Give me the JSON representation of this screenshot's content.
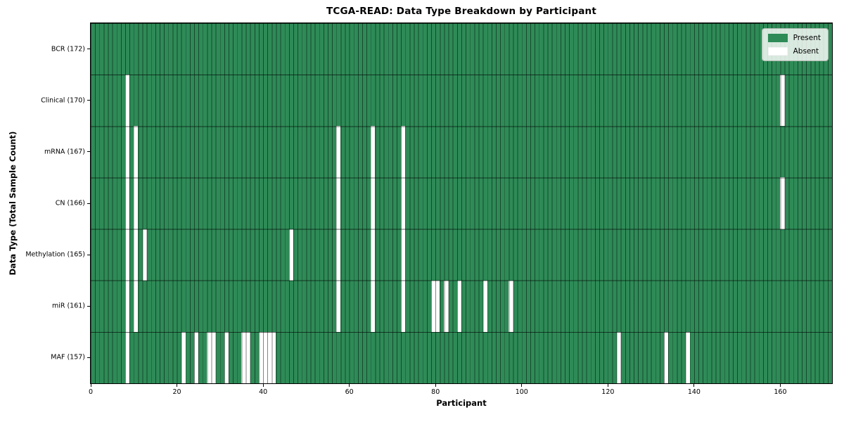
{
  "title": "TCGA-READ: Data Type Breakdown by Participant",
  "legend": {
    "present_label": "Present",
    "absent_label": "Absent",
    "present_color": "#2e8b57",
    "absent_color": "#ffffff",
    "position": "upper right"
  },
  "chart_data": {
    "type": "heatmap",
    "title": "TCGA-READ: Data Type Breakdown by Participant",
    "xlabel": "Participant",
    "ylabel": "Data Type (Total Sample Count)",
    "n_participants": 172,
    "x_ticks": [
      0,
      20,
      40,
      60,
      80,
      100,
      120,
      140,
      160
    ],
    "present_color": "#2e8b57",
    "absent_color": "#ffffff",
    "grid": true,
    "legend_position": "upper right",
    "rows": [
      {
        "data_type": "BCR",
        "label": "BCR (172)",
        "total": 172,
        "absent_participants": []
      },
      {
        "data_type": "Clinical",
        "label": "Clinical (170)",
        "total": 170,
        "absent_participants": [
          8,
          160
        ]
      },
      {
        "data_type": "mRNA",
        "label": "mRNA (167)",
        "total": 167,
        "absent_participants": [
          8,
          10,
          57,
          65,
          72
        ]
      },
      {
        "data_type": "CN",
        "label": "CN (166)",
        "total": 166,
        "absent_participants": [
          8,
          10,
          57,
          65,
          72,
          160
        ]
      },
      {
        "data_type": "Methylation",
        "label": "Methylation (165)",
        "total": 165,
        "absent_participants": [
          8,
          10,
          12,
          46,
          57,
          65,
          72
        ]
      },
      {
        "data_type": "miR",
        "label": "miR (161)",
        "total": 161,
        "absent_participants": [
          8,
          10,
          57,
          65,
          72,
          79,
          80,
          82,
          85,
          91,
          97
        ]
      },
      {
        "data_type": "MAF",
        "label": "MAF (157)",
        "total": 157,
        "absent_participants": [
          8,
          21,
          24,
          27,
          28,
          31,
          35,
          36,
          39,
          40,
          41,
          42,
          122,
          133,
          138
        ]
      }
    ]
  }
}
